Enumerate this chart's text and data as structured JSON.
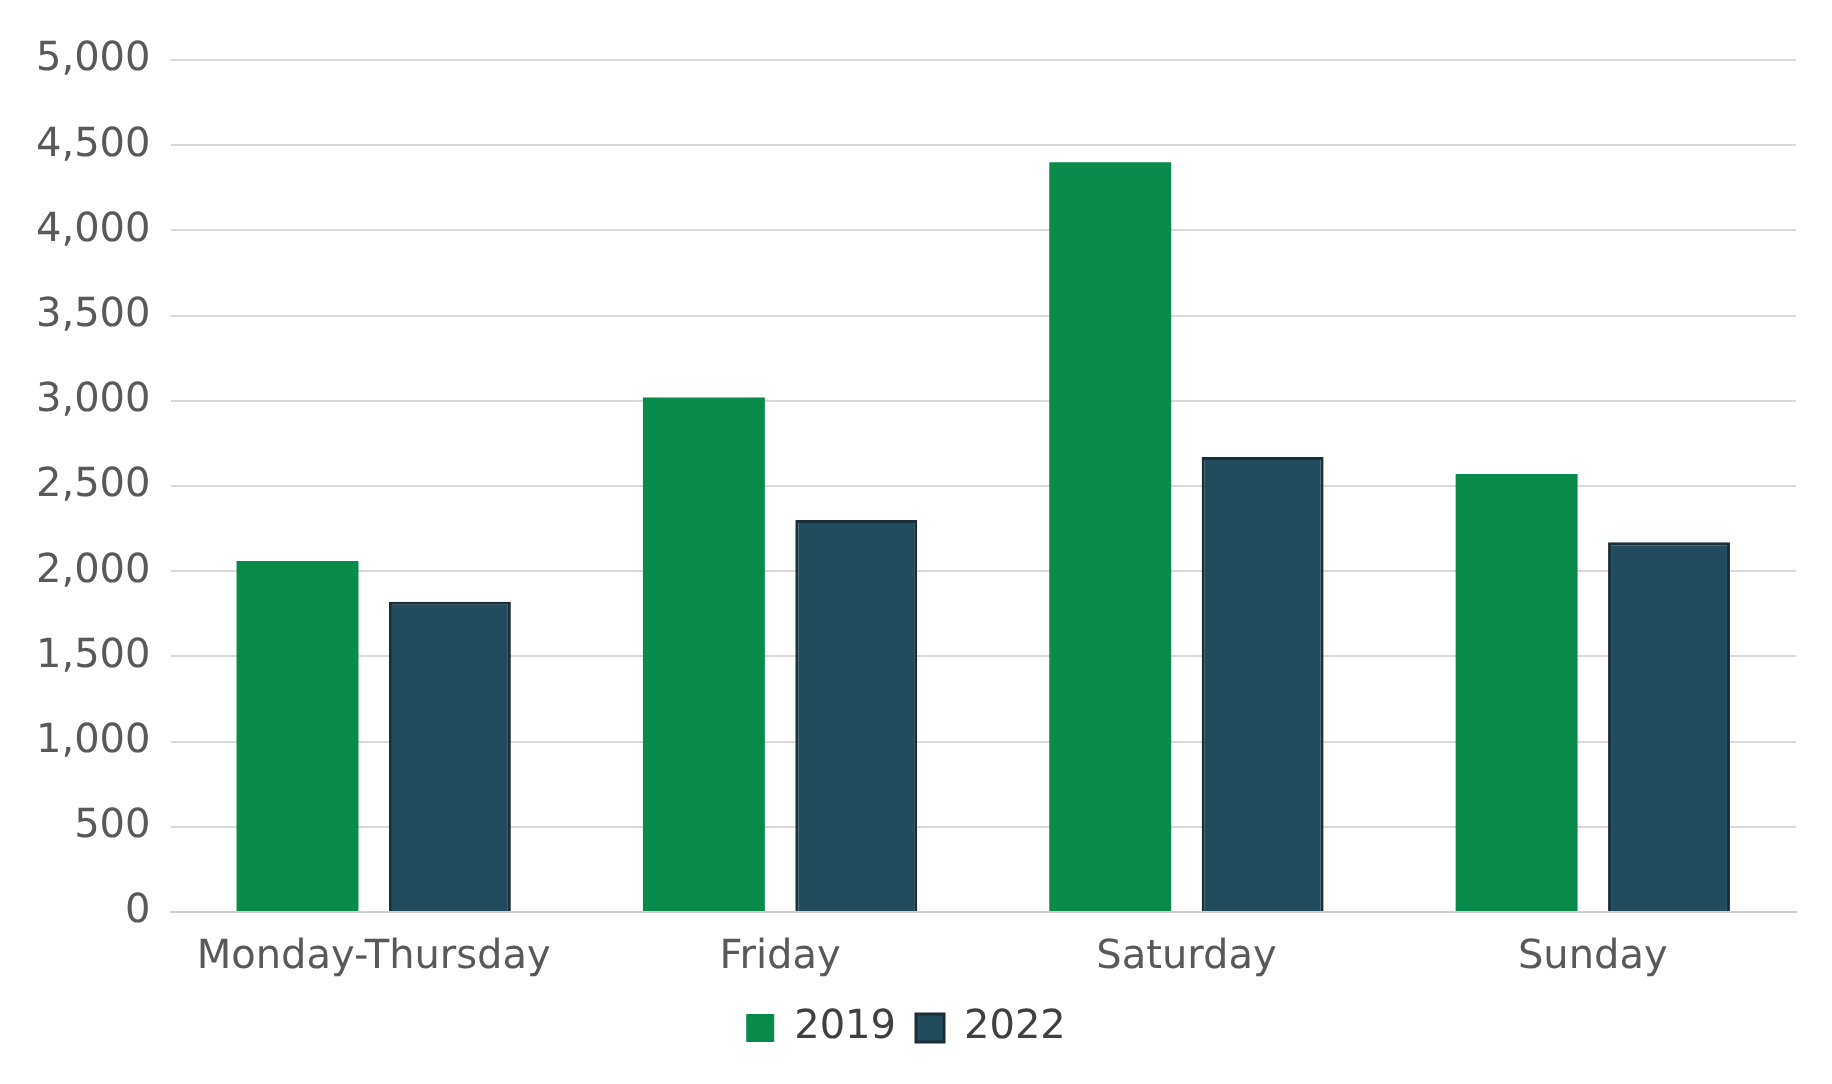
{
  "chart_data": {
    "type": "bar",
    "categories": [
      "Monday-Thursday",
      "Friday",
      "Saturday",
      "Sunday"
    ],
    "series": [
      {
        "name": "2019",
        "color": "#078a4a",
        "values": [
          2060,
          3020,
          4400,
          2570
        ]
      },
      {
        "name": "2022",
        "color": "#214c5e",
        "values": [
          1820,
          2300,
          2670,
          2170
        ]
      }
    ],
    "ylim": [
      0,
      5000
    ],
    "yticks": [
      0,
      500,
      {
        "value": 1000,
        "label": "1,000"
      },
      {
        "value": 1500,
        "label": "1,500"
      },
      {
        "value": 2000,
        "label": "2,000"
      },
      {
        "value": 2500,
        "label": "2,500"
      },
      {
        "value": 3000,
        "label": "3,000"
      },
      {
        "value": 3500,
        "label": "3,500"
      },
      {
        "value": 4000,
        "label": "4,000"
      },
      {
        "value": 4500,
        "label": "4,500"
      },
      {
        "value": 5000,
        "label": "5,000"
      }
    ],
    "grid": "y",
    "legend": "bottom"
  }
}
